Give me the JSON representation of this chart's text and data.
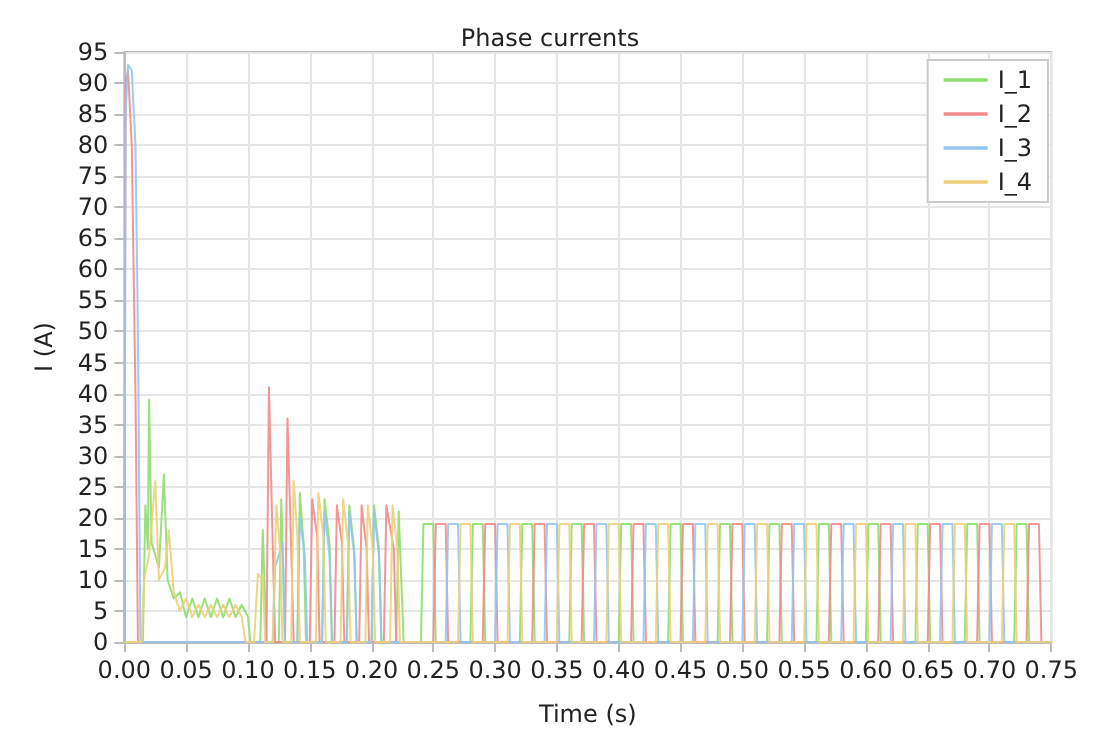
{
  "chart_data": {
    "type": "line",
    "title": "Phase currents",
    "xlabel": "Time (s)",
    "ylabel": "I (A)",
    "xlim": [
      0,
      0.75
    ],
    "xticks": [
      {
        "value": 0,
        "label": "0.00"
      },
      {
        "value": 0.05,
        "label": "0.05"
      },
      {
        "value": 0.1,
        "label": "0.10"
      },
      {
        "value": 0.15,
        "label": "0.15"
      },
      {
        "value": 0.2,
        "label": "0.20"
      },
      {
        "value": 0.25,
        "label": "0.25"
      },
      {
        "value": 0.3,
        "label": "0.30"
      },
      {
        "value": 0.35,
        "label": "0.35"
      },
      {
        "value": 0.4,
        "label": "0.40"
      },
      {
        "value": 0.45,
        "label": "0.45"
      },
      {
        "value": 0.5,
        "label": "0.50"
      },
      {
        "value": 0.55,
        "label": "0.55"
      },
      {
        "value": 0.6,
        "label": "0.60"
      },
      {
        "value": 0.65,
        "label": "0.65"
      },
      {
        "value": 0.7,
        "label": "0.70"
      },
      {
        "value": 0.75,
        "label": "0.75"
      }
    ],
    "ylim": [
      0,
      95
    ],
    "yticks": [
      0,
      5,
      10,
      15,
      20,
      25,
      30,
      35,
      40,
      45,
      50,
      55,
      60,
      65,
      70,
      75,
      80,
      85,
      90,
      95
    ],
    "grid": true,
    "legend": "top right",
    "marker": "none",
    "line_style": "solid",
    "series": [
      {
        "name": "I_1",
        "color": "#8ede6e",
        "x": [
          0,
          0.015,
          0.017,
          0.019,
          0.02,
          0.022,
          0.028,
          0.032,
          0.035,
          0.04,
          0.045,
          0.05,
          0.055,
          0.06,
          0.065,
          0.07,
          0.075,
          0.08,
          0.085,
          0.09,
          0.095,
          0.1,
          0.102,
          0.11,
          0.112,
          0.115,
          0.125,
          0.127,
          0.13,
          0.14,
          0.142,
          0.145,
          0.147,
          0.16,
          0.162,
          0.166,
          0.168,
          0.18,
          0.182,
          0.186,
          0.188,
          0.2,
          0.202,
          0.206,
          0.208,
          0.22,
          0.222,
          0.226,
          0.24,
          0.242,
          0.25,
          0.252,
          0.28,
          0.282,
          0.29,
          0.292,
          0.32,
          0.322,
          0.33,
          0.332,
          0.36,
          0.362,
          0.37,
          0.372,
          0.4,
          0.402,
          0.41,
          0.412,
          0.44,
          0.442,
          0.45,
          0.452,
          0.48,
          0.482,
          0.49,
          0.492,
          0.52,
          0.522,
          0.53,
          0.532,
          0.56,
          0.562,
          0.57,
          0.572,
          0.6,
          0.602,
          0.61,
          0.612,
          0.64,
          0.642,
          0.65,
          0.652,
          0.68,
          0.682,
          0.69,
          0.692,
          0.72,
          0.722,
          0.73,
          0.732,
          0.75
        ],
        "values": [
          0,
          0,
          22,
          15,
          39,
          16,
          12,
          27,
          10,
          7,
          8,
          4,
          7,
          4,
          7,
          4,
          7,
          4,
          7,
          4,
          6,
          4,
          0,
          0,
          18,
          0,
          0,
          23,
          0,
          0,
          24,
          16,
          0,
          0,
          23,
          16,
          0,
          0,
          22,
          15,
          0,
          0,
          22,
          15,
          0,
          0,
          21,
          0,
          0,
          19,
          19,
          0,
          0,
          19,
          19,
          0,
          0,
          19,
          19,
          0,
          0,
          19,
          19,
          0,
          0,
          19,
          19,
          0,
          0,
          19,
          19,
          0,
          0,
          19,
          19,
          0,
          0,
          19,
          19,
          0,
          0,
          19,
          19,
          0,
          0,
          19,
          19,
          0,
          0,
          19,
          19,
          0,
          0,
          19,
          19,
          0,
          0,
          19,
          19,
          0,
          0
        ]
      },
      {
        "name": "I_2",
        "color": "#f28b8b",
        "x": [
          0,
          0.001,
          0.003,
          0.006,
          0.009,
          0.011,
          0.115,
          0.117,
          0.12,
          0.122,
          0.13,
          0.132,
          0.135,
          0.137,
          0.15,
          0.152,
          0.156,
          0.158,
          0.17,
          0.172,
          0.176,
          0.178,
          0.19,
          0.192,
          0.196,
          0.198,
          0.21,
          0.212,
          0.218,
          0.22,
          0.25,
          0.252,
          0.26,
          0.262,
          0.29,
          0.292,
          0.3,
          0.302,
          0.33,
          0.332,
          0.34,
          0.342,
          0.37,
          0.372,
          0.38,
          0.382,
          0.41,
          0.412,
          0.42,
          0.422,
          0.45,
          0.452,
          0.46,
          0.462,
          0.49,
          0.492,
          0.5,
          0.502,
          0.53,
          0.532,
          0.54,
          0.542,
          0.57,
          0.572,
          0.58,
          0.582,
          0.61,
          0.612,
          0.62,
          0.622,
          0.65,
          0.652,
          0.66,
          0.662,
          0.69,
          0.692,
          0.7,
          0.702,
          0.73,
          0.732,
          0.74,
          0.742,
          0.75
        ],
        "values": [
          0,
          90,
          92,
          80,
          40,
          0,
          0,
          41,
          16,
          0,
          0,
          36,
          15,
          0,
          0,
          23,
          17,
          0,
          0,
          22,
          16,
          0,
          0,
          22,
          15,
          0,
          0,
          22,
          15,
          0,
          0,
          19,
          19,
          0,
          0,
          19,
          19,
          0,
          0,
          19,
          19,
          0,
          0,
          19,
          19,
          0,
          0,
          19,
          19,
          0,
          0,
          19,
          19,
          0,
          0,
          19,
          19,
          0,
          0,
          19,
          19,
          0,
          0,
          19,
          19,
          0,
          0,
          19,
          19,
          0,
          0,
          19,
          19,
          0,
          0,
          19,
          19,
          0,
          0,
          19,
          19,
          0,
          0
        ]
      },
      {
        "name": "I_3",
        "color": "#92c6f0",
        "x": [
          0,
          0.001,
          0.003,
          0.006,
          0.009,
          0.011,
          0.013,
          0.12,
          0.122,
          0.128,
          0.13,
          0.14,
          0.142,
          0.146,
          0.148,
          0.16,
          0.162,
          0.166,
          0.168,
          0.18,
          0.182,
          0.186,
          0.188,
          0.2,
          0.202,
          0.206,
          0.208,
          0.26,
          0.262,
          0.27,
          0.272,
          0.3,
          0.302,
          0.31,
          0.312,
          0.34,
          0.342,
          0.35,
          0.352,
          0.38,
          0.382,
          0.39,
          0.392,
          0.42,
          0.422,
          0.43,
          0.432,
          0.46,
          0.462,
          0.47,
          0.472,
          0.5,
          0.502,
          0.51,
          0.512,
          0.54,
          0.542,
          0.55,
          0.552,
          0.58,
          0.582,
          0.59,
          0.592,
          0.62,
          0.622,
          0.63,
          0.632,
          0.66,
          0.662,
          0.67,
          0.672,
          0.7,
          0.702,
          0.71,
          0.712,
          0.75
        ],
        "values": [
          0,
          85,
          93,
          92,
          80,
          50,
          0,
          0,
          12,
          16,
          0,
          0,
          20,
          14,
          0,
          0,
          21,
          14,
          0,
          0,
          21,
          14,
          0,
          0,
          21,
          14,
          0,
          0,
          19,
          19,
          0,
          0,
          19,
          19,
          0,
          0,
          19,
          19,
          0,
          0,
          19,
          19,
          0,
          0,
          19,
          19,
          0,
          0,
          19,
          19,
          0,
          0,
          19,
          19,
          0,
          0,
          19,
          19,
          0,
          0,
          19,
          19,
          0,
          0,
          19,
          19,
          0,
          0,
          19,
          19,
          0,
          0,
          19,
          19,
          0,
          0
        ]
      },
      {
        "name": "I_4",
        "color": "#ecd07a",
        "x": [
          0,
          0.014,
          0.016,
          0.02,
          0.025,
          0.028,
          0.033,
          0.036,
          0.04,
          0.045,
          0.05,
          0.055,
          0.06,
          0.065,
          0.07,
          0.075,
          0.08,
          0.085,
          0.09,
          0.095,
          0.098,
          0.105,
          0.108,
          0.112,
          0.114,
          0.12,
          0.123,
          0.126,
          0.128,
          0.135,
          0.137,
          0.14,
          0.142,
          0.155,
          0.157,
          0.161,
          0.163,
          0.175,
          0.177,
          0.181,
          0.183,
          0.195,
          0.197,
          0.201,
          0.203,
          0.215,
          0.217,
          0.221,
          0.223,
          0.27,
          0.272,
          0.28,
          0.282,
          0.31,
          0.312,
          0.32,
          0.322,
          0.35,
          0.352,
          0.36,
          0.362,
          0.39,
          0.392,
          0.4,
          0.402,
          0.43,
          0.432,
          0.44,
          0.442,
          0.47,
          0.472,
          0.48,
          0.482,
          0.51,
          0.512,
          0.52,
          0.522,
          0.55,
          0.552,
          0.56,
          0.562,
          0.59,
          0.592,
          0.6,
          0.602,
          0.63,
          0.632,
          0.64,
          0.642,
          0.67,
          0.672,
          0.68,
          0.682,
          0.71,
          0.712,
          0.72,
          0.722,
          0.75
        ],
        "values": [
          0,
          0,
          10,
          14,
          26,
          10,
          12,
          18,
          8,
          5,
          7,
          4,
          6,
          4,
          6,
          4,
          6,
          4,
          6,
          4,
          0,
          0,
          11,
          10,
          0,
          0,
          22,
          15,
          0,
          0,
          26,
          17,
          0,
          0,
          24,
          17,
          0,
          0,
          23,
          16,
          0,
          0,
          22,
          15,
          0,
          0,
          22,
          15,
          0,
          0,
          19,
          19,
          0,
          0,
          19,
          19,
          0,
          0,
          19,
          19,
          0,
          0,
          19,
          19,
          0,
          0,
          19,
          19,
          0,
          0,
          19,
          19,
          0,
          0,
          19,
          19,
          0,
          0,
          19,
          19,
          0,
          0,
          19,
          19,
          0,
          0,
          19,
          19,
          0,
          0,
          19,
          19,
          0,
          0,
          19,
          19,
          0,
          0
        ]
      }
    ]
  }
}
